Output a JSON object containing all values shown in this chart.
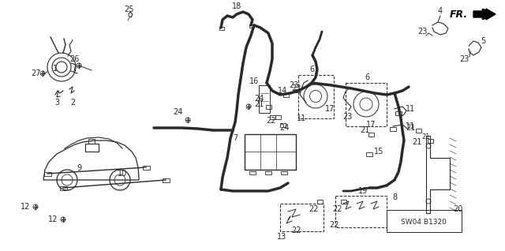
{
  "bg_color": "#ffffff",
  "line_color": "#2a2a2a",
  "part_code": "SW04 B1320",
  "figsize": [
    6.4,
    3.18
  ],
  "dpi": 100
}
